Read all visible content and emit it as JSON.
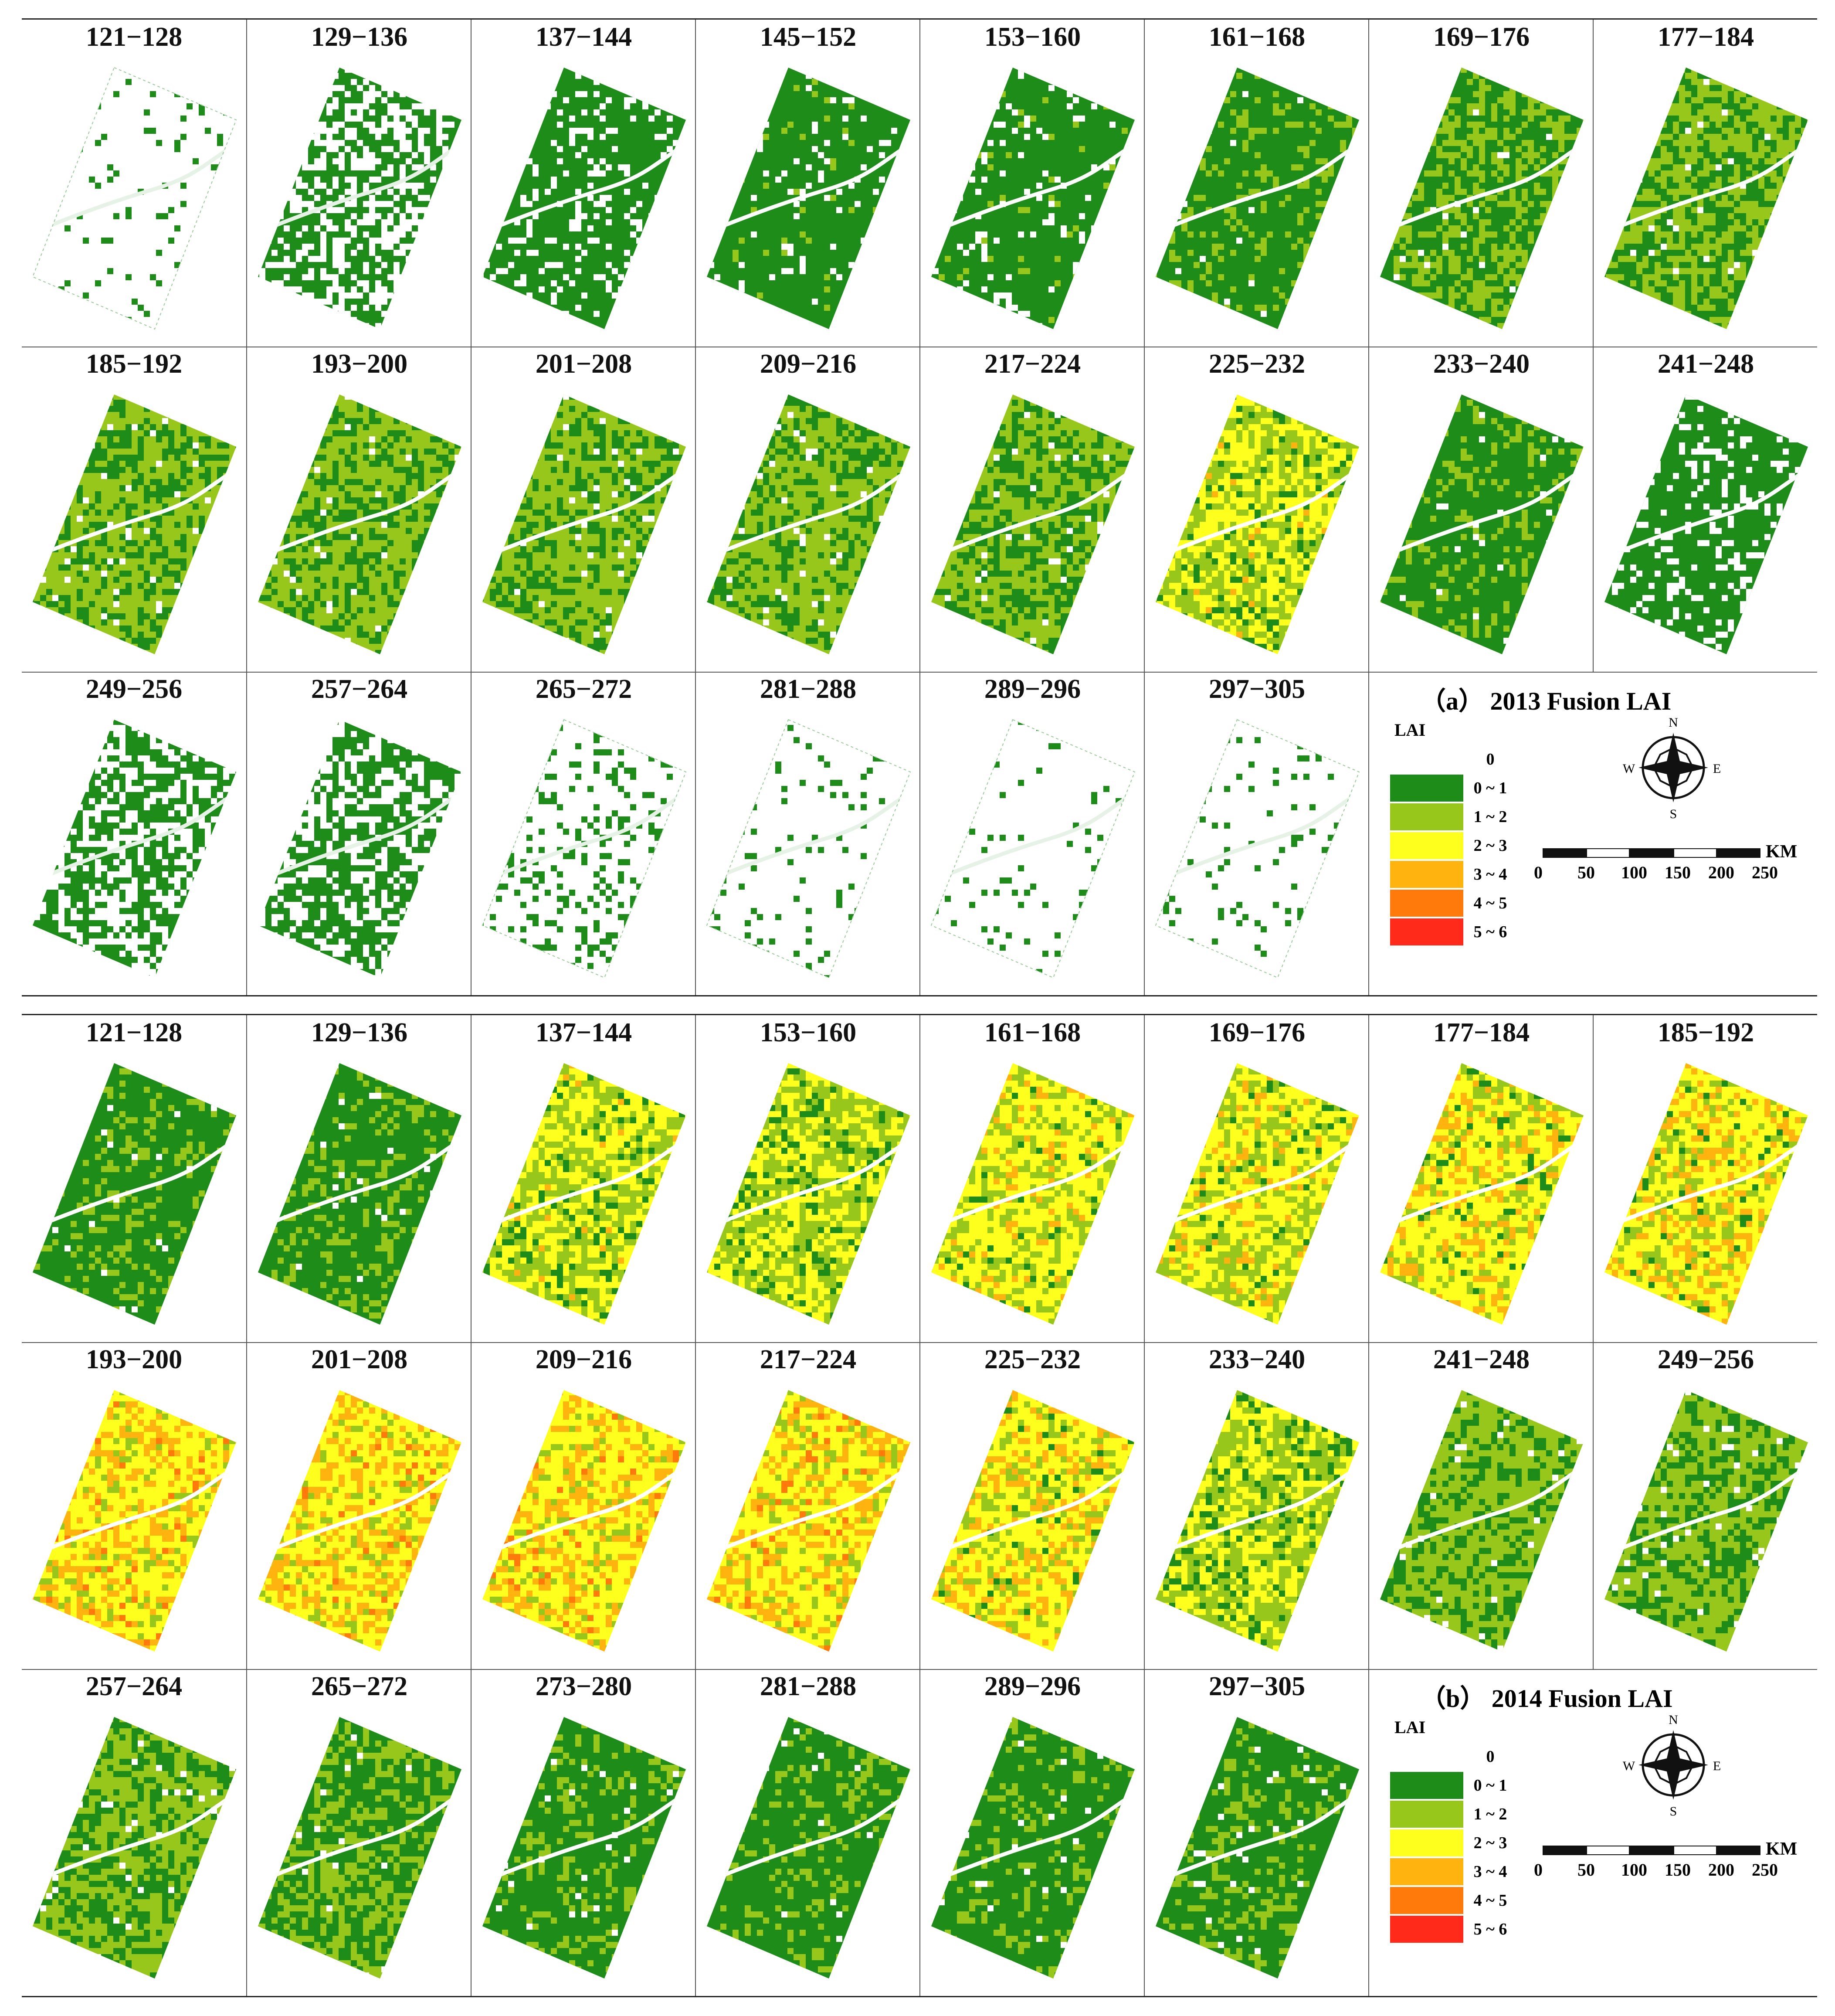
{
  "panels": [
    {
      "id": "a",
      "title": "（a） 2013  Fusion LAI",
      "periods": [
        "121−128",
        "129−136",
        "137−144",
        "145−152",
        "153−160",
        "161−168",
        "169−176",
        "177−184",
        "185−192",
        "193−200",
        "201−208",
        "209−216",
        "217−224",
        "225−232",
        "233−240",
        "241−248",
        "249−256",
        "257−264",
        "265−272",
        "281−288",
        "289−296",
        "297−305"
      ],
      "map_class": [
        0,
        2,
        3,
        4,
        4,
        5,
        6,
        7,
        8,
        8,
        8,
        8,
        7,
        9,
        5,
        3,
        2,
        2,
        1,
        0,
        0,
        0
      ]
    },
    {
      "id": "b",
      "title": "（b） 2014  Fusion LAI",
      "periods": [
        "121−128",
        "129−136",
        "137−144",
        "153−160",
        "161−168",
        "169−176",
        "177−184",
        "185−192",
        "193−200",
        "201−208",
        "209−216",
        "217−224",
        "225−232",
        "233−240",
        "241−248",
        "249−256",
        "257−264",
        "265−272",
        "273−280",
        "281−288",
        "289−296",
        "297−305"
      ],
      "map_class": [
        5,
        5,
        9,
        10,
        11,
        11,
        12,
        12,
        13,
        13,
        13,
        13,
        12,
        10,
        8,
        8,
        7,
        6,
        5,
        5,
        5,
        5
      ]
    }
  ],
  "legend": {
    "heading": "LAI",
    "classes": [
      {
        "label": "0",
        "color": "#ffffff"
      },
      {
        "label": "0 ~ 1",
        "color": "#1e8c19"
      },
      {
        "label": "1 ~ 2",
        "color": "#97c71a"
      },
      {
        "label": "2 ~ 3",
        "color": "#ffff1e"
      },
      {
        "label": "3 ~ 4",
        "color": "#ffb30f"
      },
      {
        "label": "4 ~ 5",
        "color": "#ff7a0a"
      },
      {
        "label": "5 ~ 6",
        "color": "#ff2a1a"
      }
    ]
  },
  "compass": {
    "n": "N",
    "s": "S",
    "e": "E",
    "w": "W"
  },
  "scale": {
    "ticks": [
      "0",
      "50",
      "100",
      "150",
      "200",
      "250"
    ],
    "unit": "KM"
  }
}
